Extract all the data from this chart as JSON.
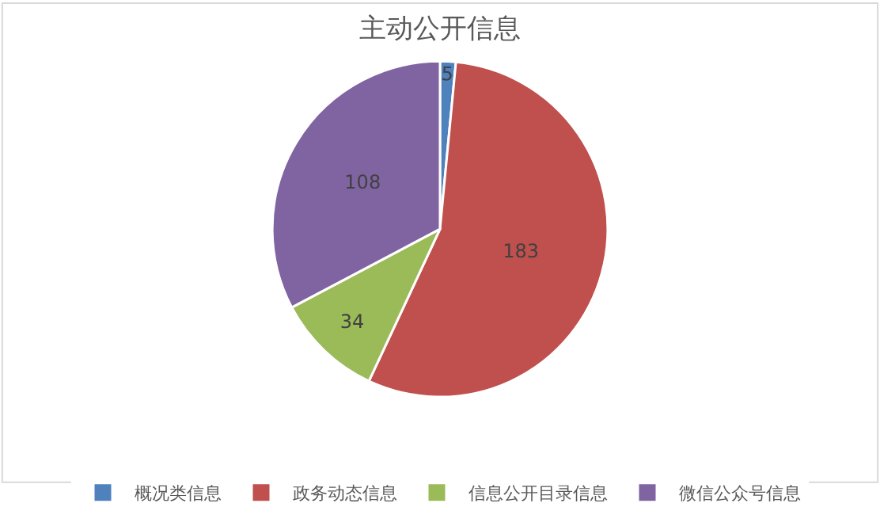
{
  "chart_data": {
    "type": "pie",
    "title": "主动公开信息",
    "categories": [
      "概况类信息",
      "政务动态信息",
      "信息公开目录信息",
      "微信公众号信息"
    ],
    "values": [
      5,
      183,
      34,
      108
    ],
    "colors": [
      "#4f81bd",
      "#c0504d",
      "#9bbb59",
      "#8064a2"
    ],
    "data_labels": true,
    "legend": "bottom"
  }
}
